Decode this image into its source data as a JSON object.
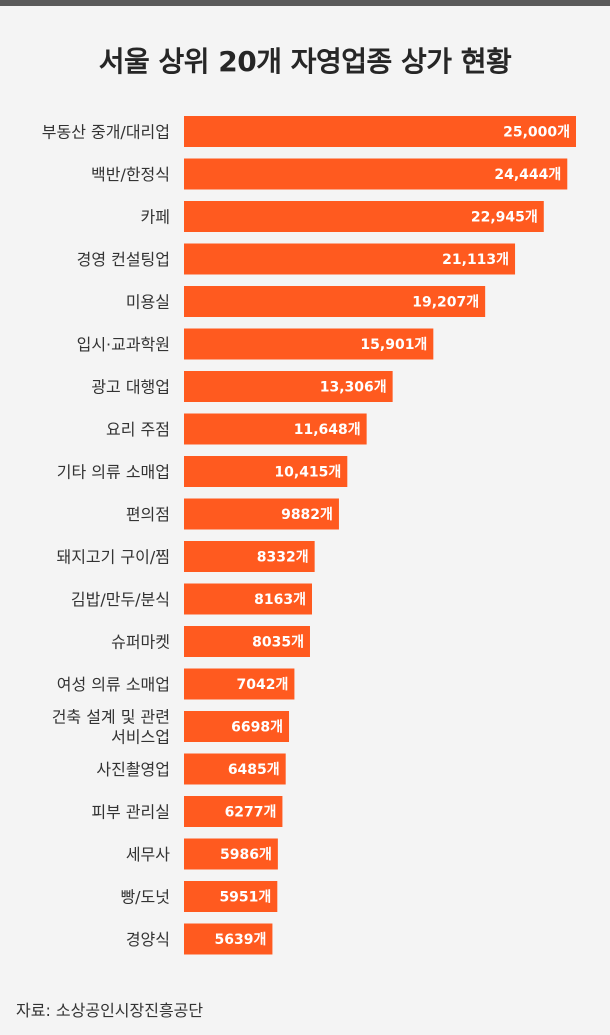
{
  "title": "서울 상위 20개 자영업종 상가 현황",
  "source": "자료: 소상공인시장진흥공단",
  "colors": {
    "bar": "#ff5a1f",
    "background": "#f4f4f4",
    "text": "#333333"
  },
  "chart_data": {
    "type": "bar",
    "orientation": "horizontal",
    "title": "서울 상위 20개 자영업종 상가 현황",
    "categories": [
      "부동산 중개/대리업",
      "백반/한정식",
      "카페",
      "경영 컨설팅업",
      "미용실",
      "입시·교과학원",
      "광고 대행업",
      "요리 주점",
      "기타 의류 소매업",
      "편의점",
      "돼지고기 구이/찜",
      "김밥/만두/분식",
      "슈퍼마켓",
      "여성 의류 소매업",
      "건축 설계 및 관련 서비스업",
      "사진촬영업",
      "피부 관리실",
      "세무사",
      "빵/도넛",
      "경양식"
    ],
    "category_lines": [
      [
        "부동산 중개/대리업"
      ],
      [
        "백반/한정식"
      ],
      [
        "카페"
      ],
      [
        "경영 컨설팅업"
      ],
      [
        "미용실"
      ],
      [
        "입시·교과학원"
      ],
      [
        "광고 대행업"
      ],
      [
        "요리 주점"
      ],
      [
        "기타 의류 소매업"
      ],
      [
        "편의점"
      ],
      [
        "돼지고기 구이/찜"
      ],
      [
        "김밥/만두/분식"
      ],
      [
        "슈퍼마켓"
      ],
      [
        "여성 의류 소매업"
      ],
      [
        "건축 설계 및 관련",
        "서비스업"
      ],
      [
        "사진촬영업"
      ],
      [
        "피부 관리실"
      ],
      [
        "세무사"
      ],
      [
        "빵/도넛"
      ],
      [
        "경양식"
      ]
    ],
    "values": [
      25000,
      24444,
      22945,
      21113,
      19207,
      15901,
      13306,
      11648,
      10415,
      9882,
      8332,
      8163,
      8035,
      7042,
      6698,
      6485,
      6277,
      5986,
      5951,
      5639
    ],
    "value_labels": [
      "25,000개",
      "24,444개",
      "22,945개",
      "21,113개",
      "19,207개",
      "15,901개",
      "13,306개",
      "11,648개",
      "10,415개",
      "9882개",
      "8332개",
      "8163개",
      "8035개",
      "7042개",
      "6698개",
      "6485개",
      "6277개",
      "5986개",
      "5951개",
      "5639개"
    ],
    "xlim": [
      0,
      25000
    ],
    "grid": false,
    "legend": "none"
  }
}
